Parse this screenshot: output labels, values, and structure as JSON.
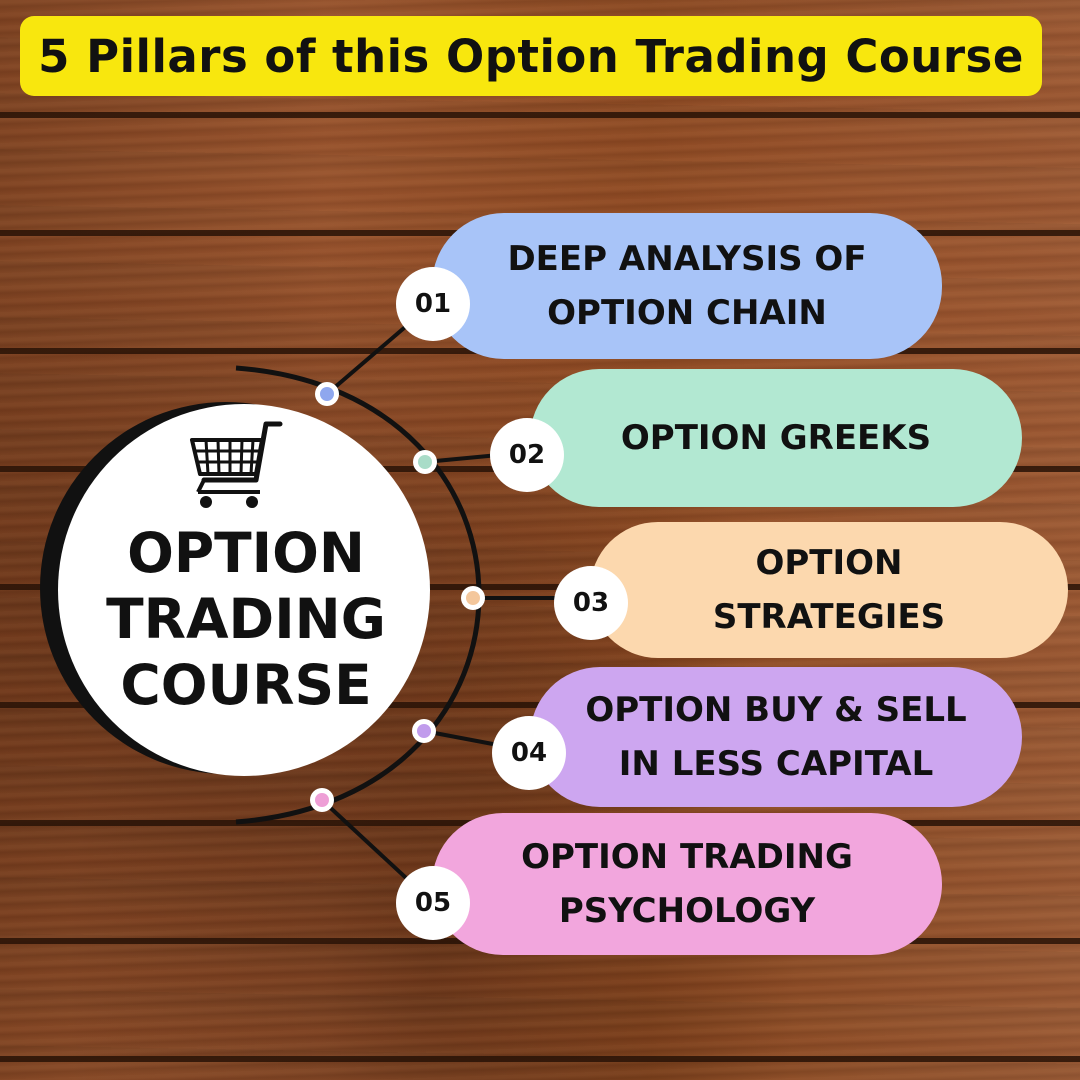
{
  "title": "5 Pillars of this Option Trading Course",
  "center": {
    "lines": [
      "OPTION",
      "TRADING",
      "COURSE"
    ],
    "icon": "shopping-cart-icon"
  },
  "pillars": [
    {
      "number": "01",
      "lines": [
        "DEEP ANALYSIS OF",
        "OPTION CHAIN"
      ],
      "color": "#a8c4f8",
      "dot_color": "#8fa7ee"
    },
    {
      "number": "02",
      "lines": [
        "OPTION GREEKS"
      ],
      "color": "#b2e8d2",
      "dot_color": "#a9dcc8"
    },
    {
      "number": "03",
      "lines": [
        "OPTION",
        "STRATEGIES"
      ],
      "color": "#fcd8ae",
      "dot_color": "#f4c79c"
    },
    {
      "number": "04",
      "lines": [
        "OPTION BUY & SELL",
        "IN LESS CAPITAL"
      ],
      "color": "#cda6f0",
      "dot_color": "#c19cec"
    },
    {
      "number": "05",
      "lines": [
        "OPTION TRADING",
        "PSYCHOLOGY"
      ],
      "color": "#f2a6dd",
      "dot_color": "#ee9fd6"
    }
  ],
  "colors": {
    "banner": "#f8e70e",
    "text": "#111111",
    "line": "#111111"
  }
}
